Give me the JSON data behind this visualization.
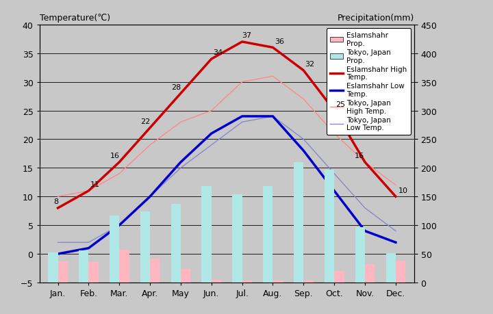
{
  "months": [
    "Jan.",
    "Feb.",
    "Mar.",
    "Apr.",
    "May",
    "Jun.",
    "Jul.",
    "Aug.",
    "Sep.",
    "Oct.",
    "Nov.",
    "Dec."
  ],
  "eslamshahr_high": [
    8,
    11,
    16,
    22,
    28,
    34,
    37,
    36,
    32,
    25,
    16,
    10
  ],
  "eslamshahr_low": [
    0,
    1,
    5,
    10,
    16,
    21,
    24,
    24,
    18,
    11,
    4,
    2
  ],
  "tokyo_high": [
    10,
    11,
    14,
    19,
    23,
    25,
    30,
    31,
    27,
    21,
    16,
    12
  ],
  "tokyo_low": [
    2,
    2,
    5,
    10,
    15,
    19,
    23,
    24,
    20,
    14,
    8,
    4
  ],
  "tokyo_precip_mm": [
    52,
    56,
    117,
    124,
    137,
    168,
    154,
    168,
    210,
    197,
    97,
    51
  ],
  "eslamshahr_precip_mm": [
    37,
    36,
    57,
    42,
    24,
    5,
    3,
    3,
    3,
    20,
    32,
    38
  ],
  "temp_ylim": [
    -5,
    40
  ],
  "precip_ylim": [
    0,
    450
  ],
  "bg_color": "#c8c8c8",
  "eslamshahr_high_color": "#cc0000",
  "eslamshahr_low_color": "#0000cc",
  "tokyo_high_color": "#ff8888",
  "tokyo_low_color": "#8888cc",
  "eslamshahr_precip_bar_color": "#ffb6c1",
  "tokyo_precip_bar_color": "#b0e8e8",
  "title_left": "Temperature(℃)",
  "title_right": "Precipitation(mm)",
  "label_show": [
    true,
    true,
    true,
    true,
    true,
    true,
    true,
    true,
    true,
    true,
    true,
    true
  ]
}
